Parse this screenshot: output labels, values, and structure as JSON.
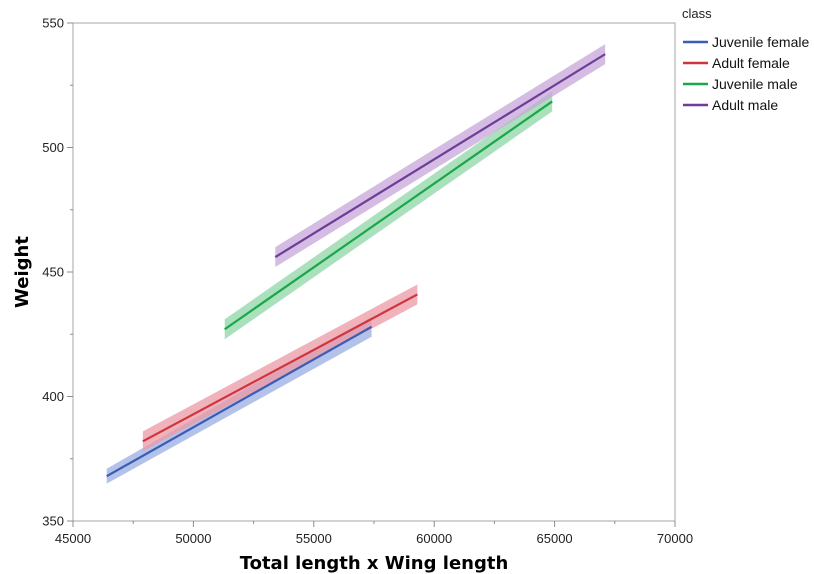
{
  "chart_data": {
    "type": "line",
    "xlabel": "Total length x Wing length",
    "ylabel": "Weight",
    "xlim": [
      45000,
      70000
    ],
    "ylim": [
      350,
      550
    ],
    "x_ticks": [
      45000,
      50000,
      55000,
      60000,
      65000,
      70000
    ],
    "y_ticks": [
      350,
      400,
      450,
      500,
      550
    ],
    "x_tick_labels": [
      "45000",
      "50000",
      "55000",
      "60000",
      "65000",
      "70000"
    ],
    "y_tick_labels": [
      "350",
      "400",
      "450",
      "500",
      "550"
    ],
    "grid": false,
    "confidence_bands": true,
    "legend": {
      "title": "class",
      "placement": "right"
    },
    "series": [
      {
        "name": "Juvenile female",
        "color": "#3b5bb5",
        "band_color": "#9aaee0",
        "x": [
          46400,
          57400
        ],
        "y": [
          368,
          428
        ],
        "ci": [
          3,
          4
        ]
      },
      {
        "name": "Adult female",
        "color": "#d0343f",
        "band_color": "#ec9aa4",
        "x": [
          47900,
          59300
        ],
        "y": [
          382,
          441
        ],
        "ci": [
          4,
          4
        ]
      },
      {
        "name": "Juvenile male",
        "color": "#1aa64a",
        "band_color": "#8fd6a5",
        "x": [
          51300,
          64900
        ],
        "y": [
          427,
          518.5
        ],
        "ci": [
          4,
          4
        ]
      },
      {
        "name": "Adult male",
        "color": "#6e3d9a",
        "band_color": "#c5a6d9",
        "x": [
          53400,
          67100
        ],
        "y": [
          456,
          537.5
        ],
        "ci": [
          4,
          4
        ]
      }
    ]
  }
}
